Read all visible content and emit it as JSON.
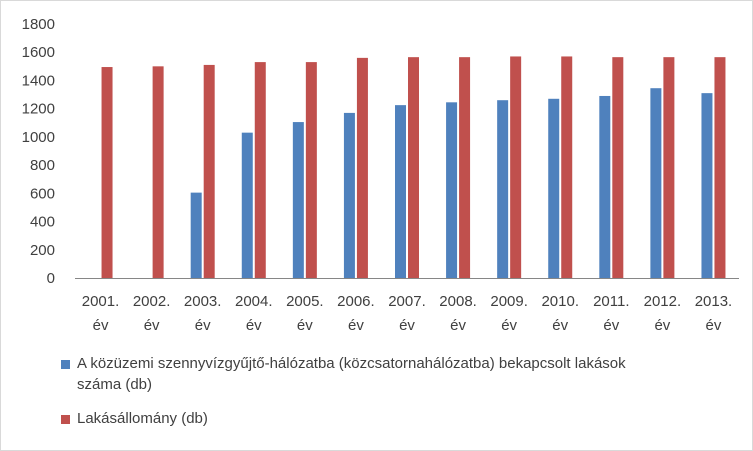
{
  "chart_data": {
    "type": "bar",
    "categories": [
      "2001. év",
      "2002. év",
      "2003. év",
      "2004. év",
      "2005. év",
      "2006. év",
      "2007. év",
      "2008. év",
      "2009. év",
      "2010. év",
      "2011. év",
      "2012. év",
      "2013. év"
    ],
    "category_lines": [
      [
        "2001.",
        "év"
      ],
      [
        "2002.",
        "év"
      ],
      [
        "2003.",
        "év"
      ],
      [
        "2004.",
        "év"
      ],
      [
        "2005.",
        "év"
      ],
      [
        "2006.",
        "év"
      ],
      [
        "2007.",
        "év"
      ],
      [
        "2008.",
        "év"
      ],
      [
        "2009.",
        "év"
      ],
      [
        "2010.",
        "év"
      ],
      [
        "2011.",
        "év"
      ],
      [
        "2012.",
        "év"
      ],
      [
        "2013.",
        "év"
      ]
    ],
    "series": [
      {
        "name": "A közüzemi szennyvízgyűjtő-hálózatba (közcsatornahálózatba) bekapcsolt lakások száma (db)",
        "color": "#4f81bd",
        "values": [
          null,
          null,
          605,
          1030,
          1105,
          1170,
          1225,
          1245,
          1260,
          1270,
          1290,
          1345,
          1310
        ]
      },
      {
        "name": "Lakásállomány (db)",
        "color": "#c0504d",
        "values": [
          1495,
          1500,
          1510,
          1530,
          1530,
          1560,
          1565,
          1565,
          1570,
          1570,
          1565,
          1565,
          1565
        ]
      }
    ],
    "yticks": [
      "0",
      "200",
      "400",
      "600",
      "800",
      "1000",
      "1200",
      "1400",
      "1600",
      "1800"
    ],
    "ylim": [
      0,
      1800
    ],
    "title": "",
    "xlabel": "",
    "ylabel": "",
    "grid": false,
    "legend_position": "bottom"
  },
  "legend": {
    "line1": "A közüzemi szennyvízgyűjtő-hálózatba (közcsatornahálózatba) bekapcsolt lakások",
    "line2": "száma (db)",
    "item2": "Lakásállomány (db)"
  }
}
